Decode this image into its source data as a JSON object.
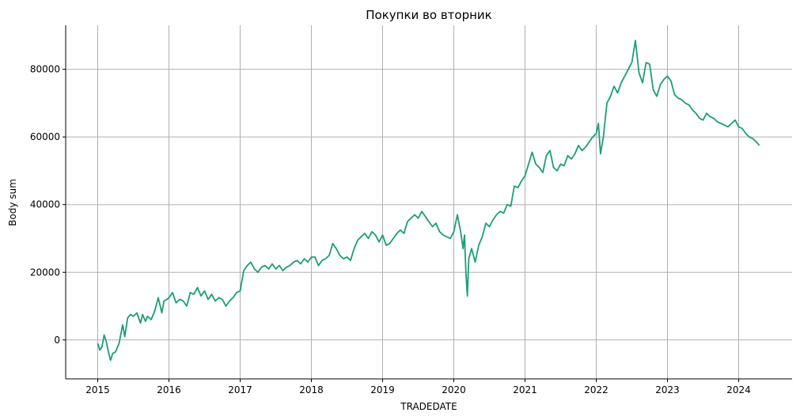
{
  "chart_data": {
    "type": "line",
    "title": "Покупки во вторник",
    "xlabel": "TRADEDATE",
    "ylabel": "Body sum",
    "xlim": [
      2014.55,
      2024.75
    ],
    "ylim": [
      -11500,
      93000
    ],
    "x_ticks": [
      2015,
      2016,
      2017,
      2018,
      2019,
      2020,
      2021,
      2022,
      2023,
      2024
    ],
    "x_tick_labels": [
      "2015",
      "2016",
      "2017",
      "2018",
      "2019",
      "2020",
      "2021",
      "2022",
      "2023",
      "2024"
    ],
    "y_ticks": [
      0,
      20000,
      40000,
      60000,
      80000
    ],
    "y_tick_labels": [
      "0",
      "20000",
      "40000",
      "60000",
      "80000"
    ],
    "grid": true,
    "color": "#1b9e77",
    "series": [
      {
        "x": [
          2015.0,
          2015.03,
          2015.06,
          2015.09,
          2015.12,
          2015.15,
          2015.18,
          2015.21,
          2015.25,
          2015.3,
          2015.35,
          2015.38,
          2015.42,
          2015.46,
          2015.5,
          2015.55,
          2015.6,
          2015.63,
          2015.67,
          2015.7,
          2015.75,
          2015.8,
          2015.85,
          2015.9,
          2015.93,
          2015.97,
          2016.0,
          2016.05,
          2016.1,
          2016.15,
          2016.2,
          2016.25,
          2016.3,
          2016.35,
          2016.4,
          2016.45,
          2016.5,
          2016.55,
          2016.6,
          2016.65,
          2016.7,
          2016.75,
          2016.8,
          2016.85,
          2016.9,
          2016.95,
          2017.0,
          2017.05,
          2017.1,
          2017.15,
          2017.2,
          2017.25,
          2017.3,
          2017.35,
          2017.4,
          2017.45,
          2017.5,
          2017.55,
          2017.6,
          2017.65,
          2017.7,
          2017.75,
          2017.8,
          2017.85,
          2017.9,
          2017.95,
          2018.0,
          2018.05,
          2018.1,
          2018.15,
          2018.2,
          2018.25,
          2018.3,
          2018.35,
          2018.4,
          2018.45,
          2018.5,
          2018.55,
          2018.6,
          2018.65,
          2018.7,
          2018.75,
          2018.8,
          2018.85,
          2018.9,
          2018.95,
          2019.0,
          2019.05,
          2019.1,
          2019.15,
          2019.2,
          2019.25,
          2019.3,
          2019.35,
          2019.4,
          2019.45,
          2019.5,
          2019.55,
          2019.6,
          2019.65,
          2019.7,
          2019.75,
          2019.8,
          2019.85,
          2019.9,
          2019.95,
          2020.0,
          2020.05,
          2020.1,
          2020.13,
          2020.15,
          2020.17,
          2020.19,
          2020.21,
          2020.25,
          2020.3,
          2020.35,
          2020.4,
          2020.45,
          2020.5,
          2020.55,
          2020.6,
          2020.65,
          2020.7,
          2020.75,
          2020.8,
          2020.85,
          2020.9,
          2020.95,
          2021.0,
          2021.05,
          2021.1,
          2021.15,
          2021.2,
          2021.25,
          2021.3,
          2021.35,
          2021.4,
          2021.45,
          2021.5,
          2021.55,
          2021.6,
          2021.65,
          2021.7,
          2021.75,
          2021.8,
          2021.85,
          2021.9,
          2021.95,
          2022.0,
          2022.03,
          2022.06,
          2022.1,
          2022.15,
          2022.2,
          2022.25,
          2022.3,
          2022.35,
          2022.4,
          2022.45,
          2022.5,
          2022.55,
          2022.6,
          2022.65,
          2022.7,
          2022.75,
          2022.8,
          2022.85,
          2022.9,
          2022.95,
          2023.0,
          2023.05,
          2023.1,
          2023.15,
          2023.2,
          2023.25,
          2023.3,
          2023.35,
          2023.4,
          2023.45,
          2023.5,
          2023.55,
          2023.6,
          2023.65,
          2023.7,
          2023.75,
          2023.8,
          2023.85,
          2023.9,
          2023.95,
          2024.0,
          2024.05,
          2024.1,
          2024.15,
          2024.2,
          2024.25,
          2024.29
        ],
        "y": [
          -1000,
          -3000,
          -2000,
          1500,
          -500,
          -3500,
          -6000,
          -4000,
          -3500,
          -1000,
          4500,
          1000,
          6500,
          7500,
          7000,
          8000,
          5000,
          7500,
          5500,
          7000,
          6000,
          8500,
          12500,
          8000,
          11500,
          12000,
          12500,
          14000,
          11000,
          12000,
          11500,
          10000,
          14000,
          13500,
          15500,
          13000,
          14500,
          12000,
          13500,
          11500,
          12500,
          12000,
          10000,
          11500,
          12500,
          14000,
          14500,
          20500,
          22000,
          23000,
          21000,
          20000,
          21500,
          22000,
          21000,
          22500,
          21000,
          22000,
          20500,
          21500,
          22000,
          23000,
          23500,
          22500,
          24000,
          23000,
          24500,
          24500,
          22000,
          23500,
          24000,
          25000,
          28500,
          27000,
          25000,
          24000,
          24500,
          23500,
          27000,
          29500,
          30500,
          31500,
          30000,
          32000,
          31000,
          29000,
          31000,
          28000,
          28500,
          30000,
          31500,
          32500,
          31500,
          35000,
          36000,
          37000,
          36000,
          38000,
          36500,
          35000,
          33500,
          34500,
          32000,
          31000,
          30500,
          30000,
          32000,
          37000,
          31500,
          27000,
          31000,
          20000,
          13000,
          24000,
          27000,
          23000,
          28000,
          30500,
          34500,
          33500,
          35500,
          37000,
          38000,
          37500,
          40000,
          39500,
          45500,
          45000,
          47000,
          48500,
          52000,
          55500,
          52000,
          51000,
          49500,
          54500,
          56000,
          51000,
          50000,
          52000,
          51500,
          54500,
          53500,
          55000,
          57500,
          56000,
          57000,
          58500,
          60000,
          61000,
          64000,
          55000,
          60000,
          70000,
          72000,
          75000,
          73000,
          76000,
          78000,
          80000,
          82000,
          88500,
          79000,
          76000,
          82000,
          81500,
          74000,
          72000,
          75500,
          77000,
          78000,
          76500,
          72500,
          71500,
          71000,
          70000,
          69500,
          68000,
          67000,
          65500,
          65000,
          67000,
          66000,
          65500,
          64500,
          64000,
          63500,
          63000,
          64000,
          65000,
          63000,
          62500,
          61000,
          60000,
          59500,
          58500,
          57500
        ]
      }
    ]
  }
}
